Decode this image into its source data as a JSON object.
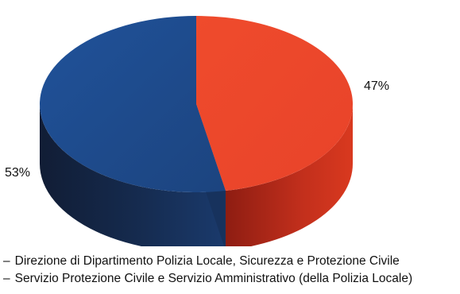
{
  "chart_data": {
    "type": "pie",
    "three_d": true,
    "slices": [
      {
        "label": "Direzione di Dipartimento Polizia Locale, Sicurezza e Protezione Civile",
        "value": 47,
        "display": "47%",
        "color": "#ef4a2b"
      },
      {
        "label": "Servizio Protezione Civile e Servizio Amministrativo (della Polizia Locale)",
        "value": 53,
        "display": "53%",
        "color": "#1f4b8f"
      }
    ],
    "legend_placement": "bottom"
  },
  "legend": {
    "dash": "–",
    "items": [
      "Direzione di Dipartimento Polizia Locale, Sicurezza e Protezione Civile",
      "Servizio Protezione Civile e Servizio Amministrativo (della Polizia Locale)"
    ]
  }
}
